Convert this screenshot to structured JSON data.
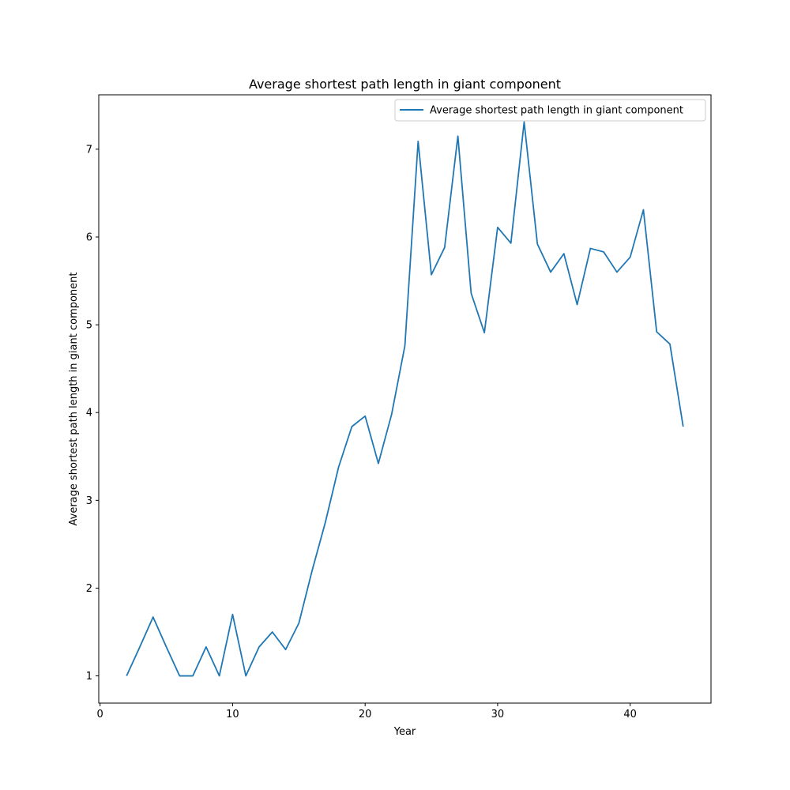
{
  "chart_data": {
    "type": "line",
    "title": "Average shortest path length in giant component",
    "xlabel": "Year",
    "ylabel": "Average shortest path length in giant component",
    "xlim": [
      -0.1,
      46.1
    ],
    "ylim": [
      0.69,
      7.62
    ],
    "xticks": [
      0,
      10,
      20,
      30,
      40
    ],
    "yticks": [
      1,
      2,
      3,
      4,
      5,
      6,
      7
    ],
    "grid": false,
    "legend_position": "top-right",
    "series": [
      {
        "name": "Average shortest path length in giant component",
        "color": "#1f77b4",
        "x": [
          2,
          3,
          4,
          5,
          6,
          7,
          8,
          9,
          10,
          11,
          12,
          13,
          14,
          15,
          16,
          17,
          18,
          19,
          20,
          21,
          22,
          23,
          24,
          25,
          26,
          27,
          28,
          29,
          30,
          31,
          32,
          33,
          34,
          35,
          36,
          37,
          38,
          39,
          40,
          41,
          42,
          43,
          44
        ],
        "y": [
          1.0,
          1.33,
          1.67,
          1.33,
          1.0,
          1.0,
          1.33,
          1.0,
          1.7,
          1.0,
          1.33,
          1.5,
          1.3,
          1.6,
          2.2,
          2.75,
          3.38,
          3.84,
          3.96,
          3.42,
          3.98,
          4.76,
          7.09,
          5.57,
          5.88,
          7.15,
          5.36,
          4.91,
          6.11,
          5.93,
          7.31,
          5.92,
          5.6,
          5.81,
          5.23,
          5.87,
          5.83,
          5.6,
          5.77,
          6.31,
          4.92,
          4.78,
          3.84
        ]
      }
    ]
  }
}
